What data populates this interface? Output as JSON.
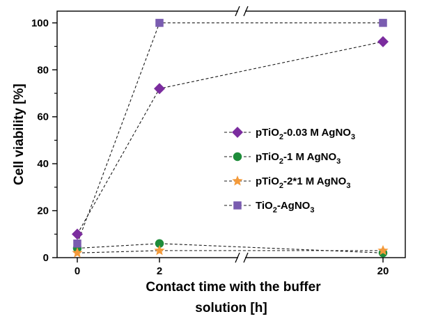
{
  "chart_data": {
    "type": "line",
    "title": "",
    "xlabel_line1": "Contact time with the buffer",
    "xlabel_line2": "solution  [h]",
    "ylabel": "Cell viability [%]",
    "x_categories": [
      "0",
      "2",
      "20"
    ],
    "x_axis_break": "between 2 and 20",
    "ylim": [
      0,
      105
    ],
    "yticks": [
      "0",
      "20",
      "40",
      "60",
      "80",
      "100"
    ],
    "grid": false,
    "legend_position": "center-right",
    "series": [
      {
        "name_parts": [
          "pTiO",
          "2",
          "-0.03 M AgNO",
          "3"
        ],
        "marker": "diamond",
        "color": "#7B2C9E",
        "values": [
          10,
          72,
          92
        ]
      },
      {
        "name_parts": [
          "pTiO",
          "2",
          "-1 M AgNO",
          "3"
        ],
        "marker": "circle",
        "color": "#1E8C3A",
        "values": [
          4,
          6,
          2
        ]
      },
      {
        "name_parts": [
          "pTiO",
          "2",
          "-2*1 M AgNO",
          "3"
        ],
        "marker": "star",
        "color": "#F39A3B",
        "values": [
          2,
          3,
          3
        ]
      },
      {
        "name_parts": [
          "TiO",
          "2",
          "-AgNO",
          "3"
        ],
        "marker": "square",
        "color": "#7A5CB0",
        "values": [
          6,
          100,
          100
        ]
      }
    ]
  }
}
